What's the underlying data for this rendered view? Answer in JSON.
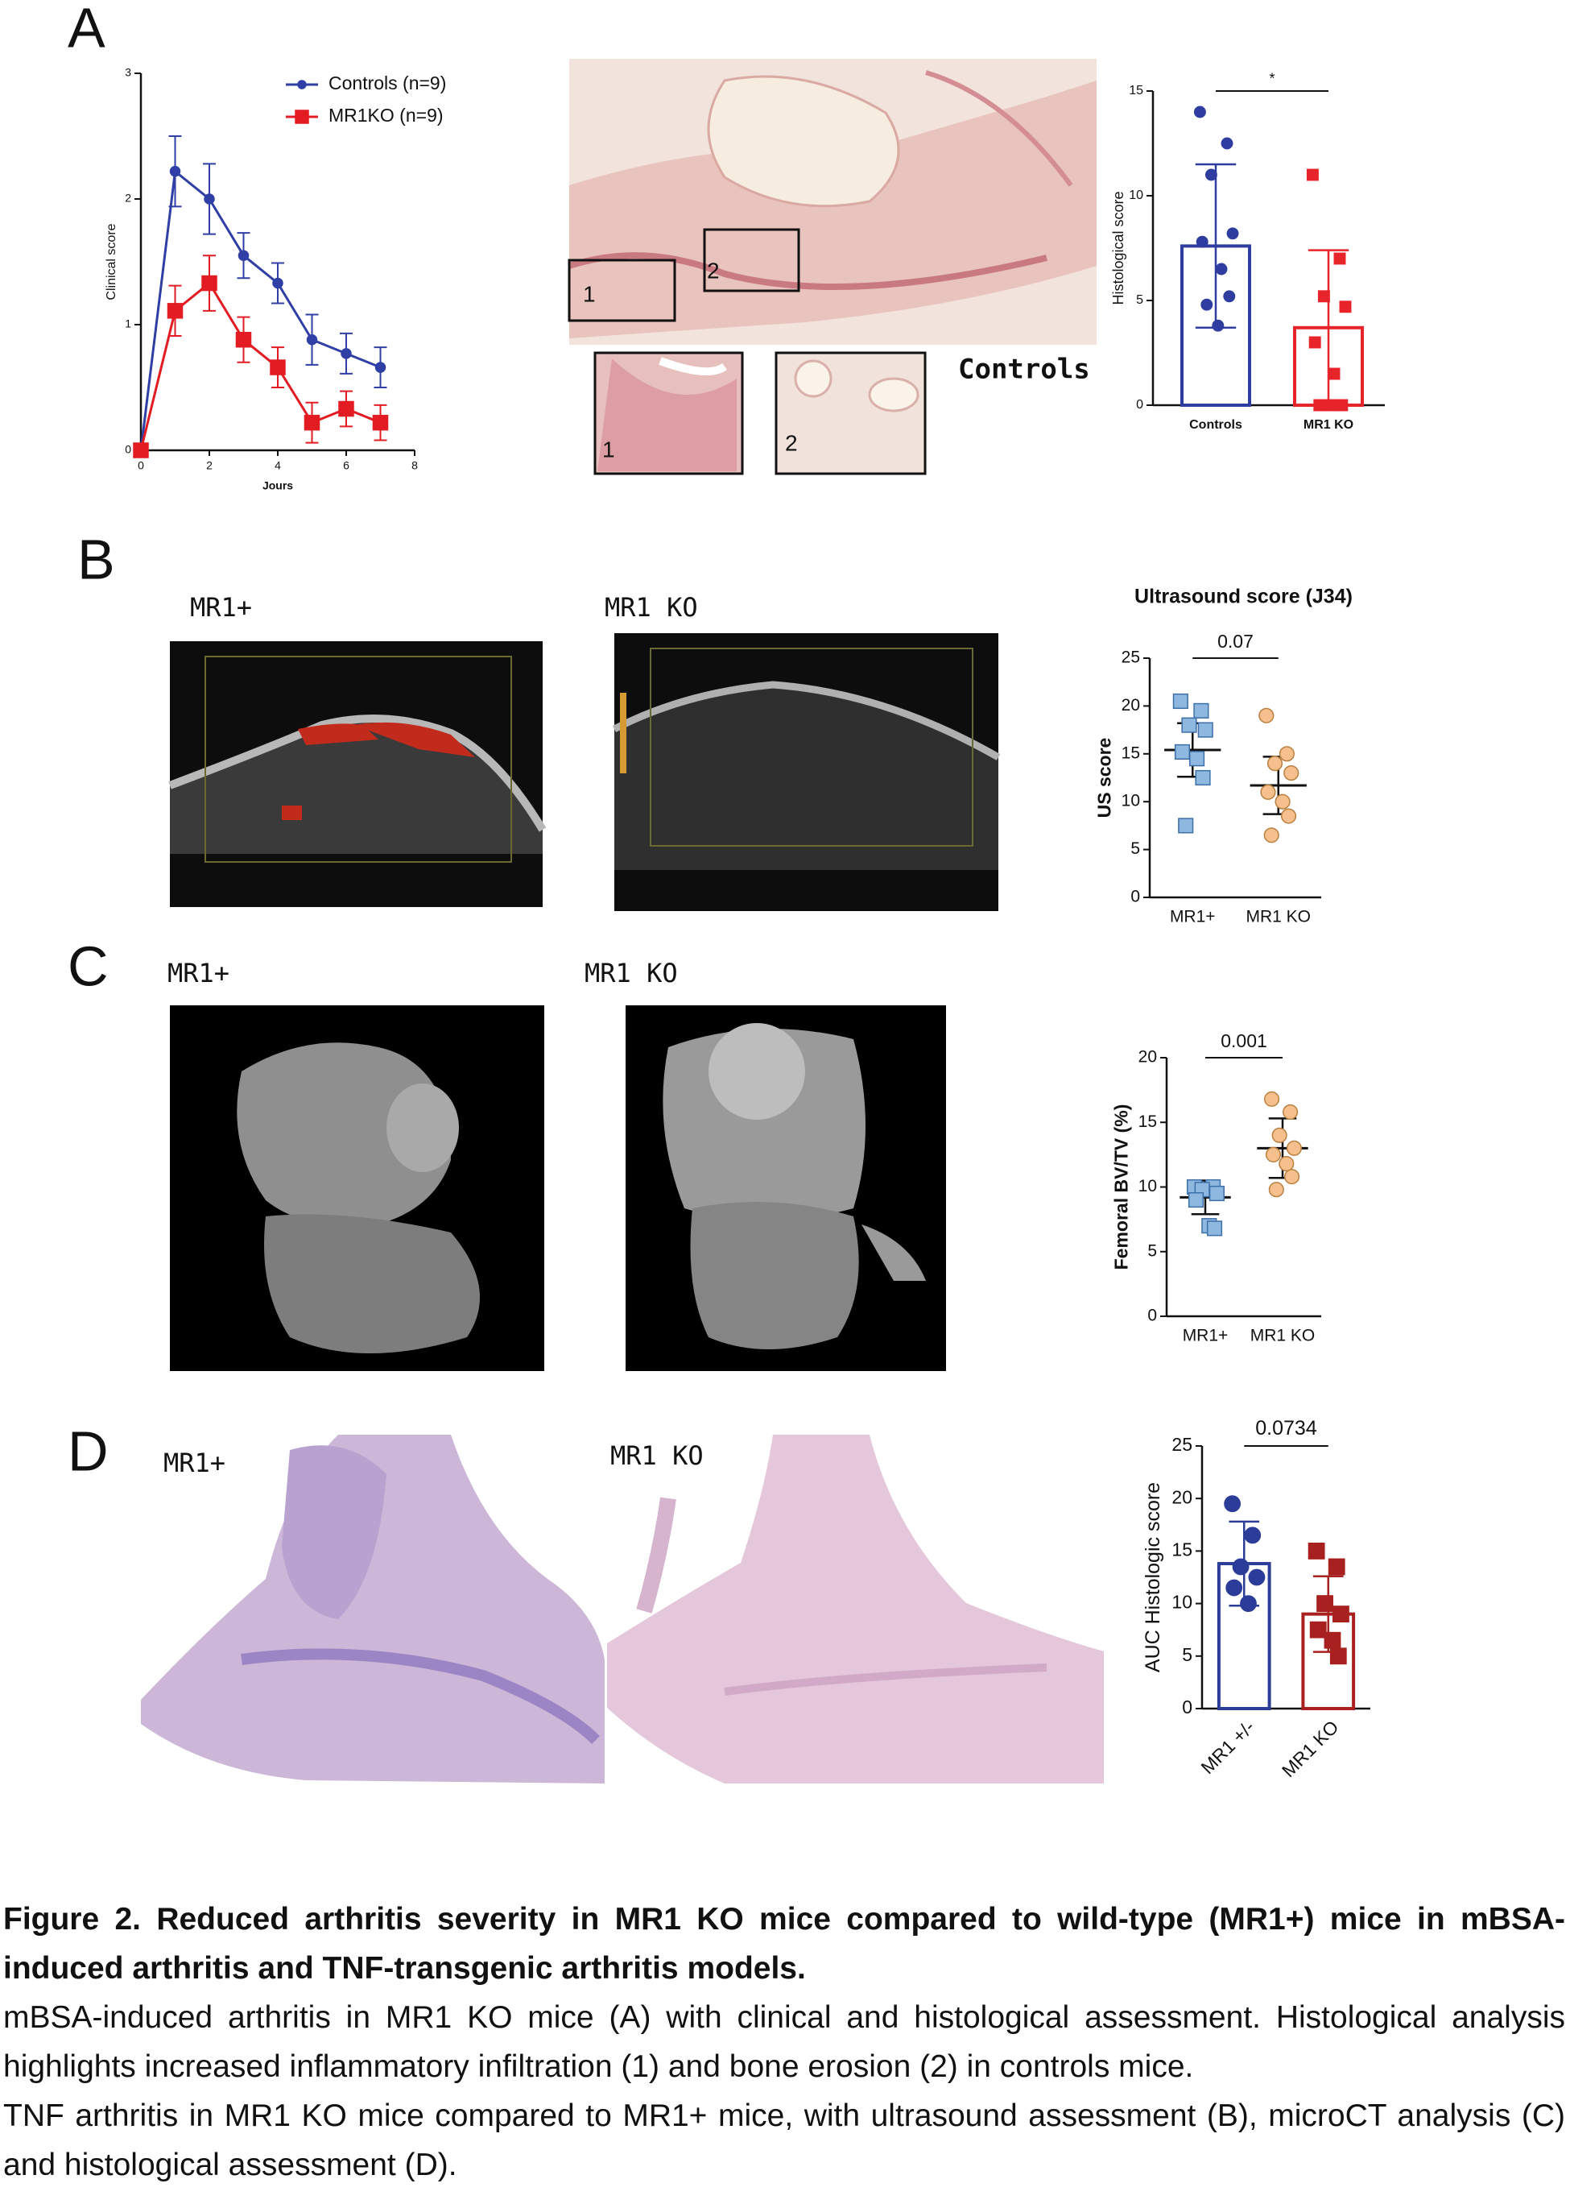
{
  "panels": [
    "A",
    "B",
    "C",
    "D"
  ],
  "panel_a": {
    "region_labels": [
      "1",
      "2",
      "1",
      "2"
    ],
    "image_label": "Controls"
  },
  "panel_b": {
    "image_labels": [
      "MR1+",
      "MR1 KO"
    ]
  },
  "panel_c": {
    "image_labels": [
      "MR1+",
      "MR1 KO"
    ]
  },
  "panel_d": {
    "image_labels": [
      "MR1+",
      "MR1 KO"
    ]
  },
  "chart_data": [
    {
      "type": "line",
      "x": [
        0,
        1,
        2,
        3,
        4,
        5,
        6,
        7
      ],
      "series": [
        {
          "name": "Controls (n=9)",
          "color": "#2f3fa6",
          "marker": "circle",
          "values": [
            0,
            2.22,
            2.0,
            1.55,
            1.33,
            0.88,
            0.77,
            0.66
          ],
          "errors": [
            0,
            0.28,
            0.28,
            0.18,
            0.16,
            0.2,
            0.16,
            0.16
          ]
        },
        {
          "name": "MR1KO (n=9)",
          "color": "#e31c23",
          "marker": "square",
          "values": [
            0,
            1.11,
            1.33,
            0.88,
            0.66,
            0.22,
            0.33,
            0.22
          ],
          "errors": [
            0,
            0.2,
            0.22,
            0.18,
            0.16,
            0.16,
            0.14,
            0.14
          ]
        }
      ],
      "xlim": [
        0,
        8
      ],
      "xticks": [
        0,
        2,
        4,
        6,
        8
      ],
      "ylim": [
        0,
        3
      ],
      "yticks": [
        0,
        1,
        2,
        3
      ],
      "xlabel": "Jours",
      "ylabel": "Clinical score"
    },
    {
      "type": "bar",
      "categories": [
        "Controls",
        "MR1 KO"
      ],
      "values": [
        7.6,
        3.7
      ],
      "errors": [
        3.9,
        3.7
      ],
      "points": [
        [
          14,
          12.5,
          11,
          8.2,
          7.8,
          6.5,
          5.2,
          4.8,
          3.8
        ],
        [
          11,
          7,
          5.2,
          4.7,
          3,
          1.5,
          0,
          0,
          0
        ]
      ],
      "colors": [
        "#2e3d9f",
        "#e8242b"
      ],
      "markers": [
        "circle",
        "square"
      ],
      "ylim": [
        0,
        15
      ],
      "yticks": [
        0,
        5,
        10,
        15
      ],
      "ylabel": "Histological score",
      "annotation": "*"
    },
    {
      "type": "dot",
      "title": "Ultrasound score (J34)",
      "categories": [
        "MR1+",
        "MR1 KO"
      ],
      "values": [
        15.4,
        11.7
      ],
      "errors": [
        2.8,
        3.0
      ],
      "points": [
        [
          20.5,
          19.5,
          18,
          17.5,
          15.2,
          14.5,
          12.5,
          7.5
        ],
        [
          19,
          15,
          14,
          13,
          11,
          10,
          8.5,
          6.5
        ]
      ],
      "colors": [
        "#8fb8e0",
        "#f6c08e"
      ],
      "edge_colors": [
        "#3d6fa8",
        "#b9803f"
      ],
      "markers": [
        "square",
        "circle"
      ],
      "ylim": [
        0,
        25
      ],
      "yticks": [
        0,
        5,
        10,
        15,
        20,
        25
      ],
      "ylabel": "US score",
      "annotation": "0.07"
    },
    {
      "type": "dot",
      "categories": [
        "MR1+",
        "MR1 KO"
      ],
      "values": [
        9.2,
        13.0
      ],
      "errors": [
        1.3,
        2.3
      ],
      "points": [
        [
          10,
          10,
          9.8,
          9.5,
          9,
          7,
          6.8
        ],
        [
          16.8,
          15.8,
          14,
          13,
          12.5,
          11.8,
          10.8,
          9.8
        ]
      ],
      "colors": [
        "#8fb8e0",
        "#f6c08e"
      ],
      "edge_colors": [
        "#3d6fa8",
        "#b9803f"
      ],
      "markers": [
        "square",
        "circle"
      ],
      "ylim": [
        0,
        20
      ],
      "yticks": [
        0,
        5,
        10,
        15,
        20
      ],
      "ylabel": "Femoral BV/TV (%)",
      "annotation": "0.001"
    },
    {
      "type": "bar",
      "categories": [
        "MR1 +/-",
        "MR1 KO"
      ],
      "values": [
        13.8,
        9.0
      ],
      "errors": [
        4.0,
        3.6
      ],
      "points": [
        [
          19.5,
          16.5,
          13.5,
          12.5,
          11.5,
          10
        ],
        [
          15,
          13.5,
          10,
          9,
          7.5,
          6.5,
          5
        ]
      ],
      "colors": [
        "#2c3c99",
        "#a8201f"
      ],
      "markers": [
        "circle",
        "square"
      ],
      "ylim": [
        0,
        25
      ],
      "yticks": [
        0,
        5,
        10,
        15,
        20,
        25
      ],
      "ylabel": "AUC Histologic score",
      "annotation": "0.0734"
    }
  ],
  "caption": {
    "title": "Figure 2. Reduced arthritis severity in MR1 KO mice compared to wild-type (MR1+) mice in mBSA-induced arthritis and TNF-transgenic arthritis models.",
    "body": [
      "mBSA-induced arthritis in MR1 KO mice (A) with clinical and histological assessment. Histological analysis highlights increased inflammatory infiltration (1) and bone erosion (2) in controls mice.",
      "TNF arthritis in MR1 KO mice compared to MR1+ mice, with ultrasound assessment (B), microCT analysis (C) and histological assessment (D)."
    ]
  }
}
